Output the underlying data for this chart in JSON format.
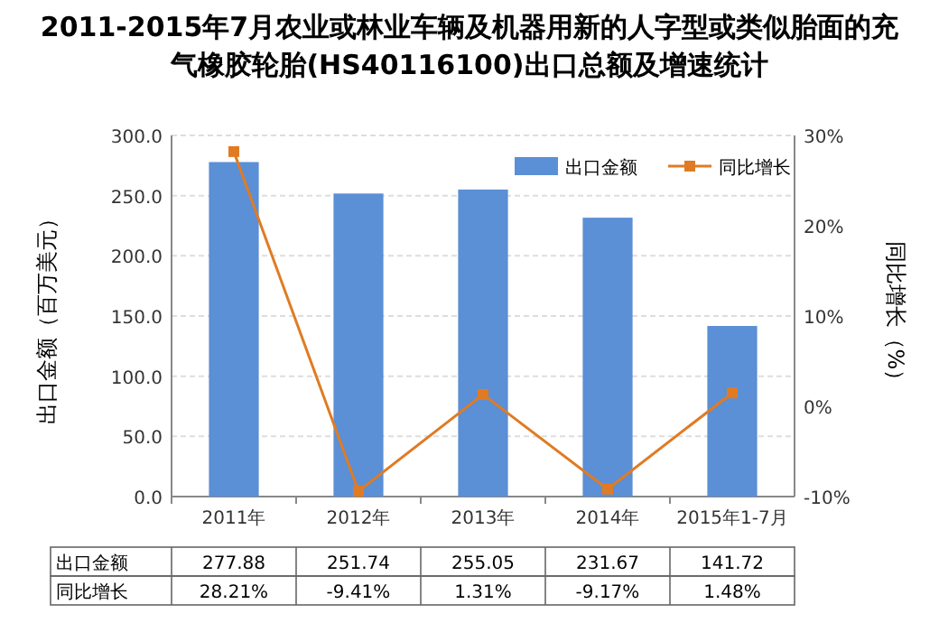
{
  "chart_data": {
    "type": "bar",
    "title": "2011-2015年7月农业或林业车辆及机器用新的人字型或类似胎面的充气橡胶轮胎(HS40116100)出口总额及增速统计",
    "ylabel": "出口金额（百万美元）",
    "y2label": "同比增长（%）",
    "categories": [
      "2011年",
      "2012年",
      "2013年",
      "2014年",
      "2015年1-7月"
    ],
    "series": [
      {
        "name": "出口金额",
        "color": "#5b8fd6",
        "values": [
          277.88,
          251.74,
          255.05,
          231.67,
          141.72
        ],
        "value_labels": [
          "277.88",
          "251.74",
          "255.05",
          "231.67",
          "141.72"
        ]
      },
      {
        "name": "同比增长",
        "type": "line",
        "axis": "y2",
        "color": "#e07b24",
        "marker": "square",
        "values": [
          28.21,
          -9.41,
          1.31,
          -9.17,
          1.48
        ],
        "value_labels": [
          "28.21%",
          "-9.41%",
          "1.31%",
          "-9.17%",
          "1.48%"
        ]
      }
    ],
    "ylim": [
      0,
      300
    ],
    "yticks": [
      {
        "value": 0,
        "label": "0.0"
      },
      {
        "value": 50,
        "label": "50.0"
      },
      {
        "value": 100,
        "label": "100.0"
      },
      {
        "value": 150,
        "label": "150.0"
      },
      {
        "value": 200,
        "label": "200.0"
      },
      {
        "value": 250,
        "label": "250.0"
      },
      {
        "value": 300,
        "label": "300.0"
      }
    ],
    "y2lim": [
      -10,
      30
    ],
    "y2ticks": [
      {
        "value": -10,
        "label": "-10%"
      },
      {
        "value": 0,
        "label": "0%"
      },
      {
        "value": 10,
        "label": "10%"
      },
      {
        "value": 20,
        "label": "20%"
      },
      {
        "value": 30,
        "label": "30%"
      }
    ],
    "grid": "y",
    "legend": "top right"
  }
}
